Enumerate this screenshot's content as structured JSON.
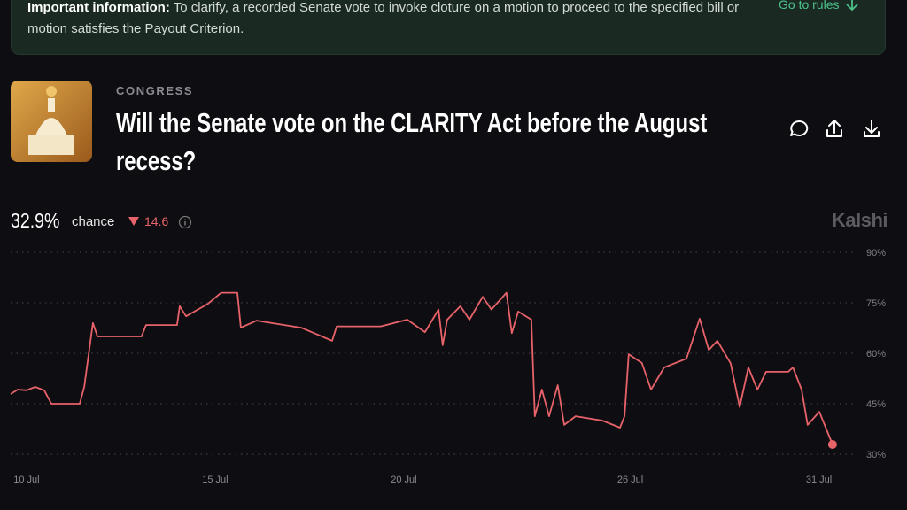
{
  "banner": {
    "label": "Important information:",
    "text": "To clarify, a recorded Senate vote to invoke cloture on a motion to proceed to the specified bill or motion satisfies the Payout Criterion.",
    "link": "Go to rules"
  },
  "market": {
    "category": "CONGRESS",
    "title": "Will the Senate vote on the CLARITY Act before the August recess?"
  },
  "summary": {
    "price": "32.9%",
    "unit": "chance",
    "change": "14.6",
    "brand": "Kalshi"
  },
  "chart_data": {
    "type": "line",
    "x": [
      9.58,
      9.77,
      10,
      10.23,
      10.47,
      10.66,
      11.41,
      11.53,
      11.76,
      11.88,
      13.05,
      13.17,
      13.99,
      14.06,
      14.23,
      14.81,
      15.16,
      15.45,
      15.59,
      15.68,
      16.1,
      17.28,
      18.1,
      18.22,
      19.39,
      20.09,
      20.56,
      20.92,
      21.03,
      21.15,
      21.5,
      21.74,
      22.09,
      22.32,
      22.72,
      22.86,
      23.03,
      23.38,
      23.47,
      23.66,
      23.85,
      24.08,
      24.25,
      24.55,
      25.26,
      25.73,
      25.85,
      25.96,
      26.31,
      26.55,
      26.9,
      27.49,
      27.84,
      28.08,
      28.31,
      28.66,
      28.9,
      29.13,
      29.37,
      29.6,
      30.19,
      30.31,
      30.54,
      30.7,
      31.01,
      31.36
    ],
    "series": [
      {
        "color": "#e8626a",
        "values": [
          47.9,
          49.2,
          49,
          50,
          49,
          45,
          45,
          50,
          69,
          65,
          65,
          68.4,
          68.4,
          74,
          71,
          74.7,
          78,
          78,
          78,
          67.6,
          69.7,
          67.6,
          63.7,
          68,
          68,
          70,
          66.3,
          73,
          62.4,
          70,
          74,
          70,
          76.8,
          73,
          78,
          66,
          72.4,
          70,
          41.3,
          49.2,
          41.3,
          50.5,
          38.7,
          41.3,
          40,
          37.9,
          41.3,
          59.7,
          57.1,
          49.2,
          55.8,
          58.4,
          70.3,
          61,
          63.7,
          57,
          44,
          55.8,
          49.2,
          54.5,
          54.5,
          55.8,
          49.2,
          38.7,
          42.6,
          32.9
        ]
      }
    ],
    "xlim": [
      9.58,
      31.48
    ],
    "xticks": [
      {
        "value": 10,
        "label": "10 Jul"
      },
      {
        "value": 15,
        "label": "15 Jul"
      },
      {
        "value": 20,
        "label": "20 Jul"
      },
      {
        "value": 26,
        "label": "26 Jul"
      },
      {
        "value": 31,
        "label": "31 Jul"
      }
    ],
    "ylim": [
      30,
      90
    ],
    "yticks": [
      {
        "value": 30,
        "label": "30%"
      },
      {
        "value": 45,
        "label": "45%"
      },
      {
        "value": 60,
        "label": "60%"
      },
      {
        "value": 75,
        "label": "75%"
      },
      {
        "value": 90,
        "label": "90%"
      }
    ],
    "grid": true
  }
}
